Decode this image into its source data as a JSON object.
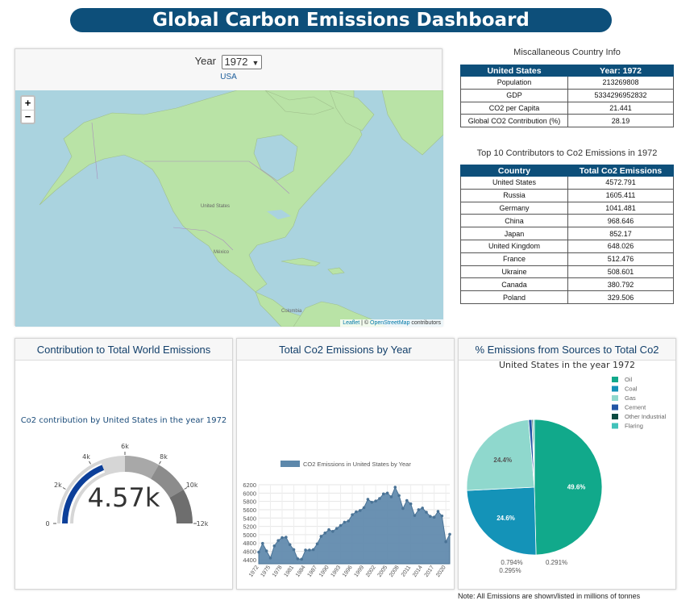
{
  "header": {
    "title": "Global Carbon Emissions Dashboard"
  },
  "map": {
    "year_label": "Year",
    "selected_year": "1972",
    "country": "USA",
    "zoom_in": "+",
    "zoom_out": "−",
    "labels": {
      "us": "United States",
      "mexico": "México",
      "colombia": "Colombia"
    },
    "attribution": {
      "leaflet": "Leaflet",
      "sep": " | © ",
      "osm": "OpenStreetMap",
      "suffix": " contributors"
    }
  },
  "info": {
    "title": "Miscallaneous Country Info",
    "col1": "United States",
    "col2": "Year: 1972",
    "rows": [
      {
        "label": "Population",
        "value": "213269808"
      },
      {
        "label": "GDP",
        "value": "5334296952832"
      },
      {
        "label": "CO2 per Capita",
        "value": "21.441"
      },
      {
        "label": "Global CO2 Contribution (%)",
        "value": "28.19"
      }
    ]
  },
  "top10": {
    "title": "Top 10 Contributors to Co2 Emissions in 1972",
    "col1": "Country",
    "col2": "Total Co2 Emissions",
    "rows": [
      {
        "country": "United States",
        "value": "4572.791"
      },
      {
        "country": "Russia",
        "value": "1605.411"
      },
      {
        "country": "Germany",
        "value": "1041.481"
      },
      {
        "country": "China",
        "value": "968.646"
      },
      {
        "country": "Japan",
        "value": "852.17"
      },
      {
        "country": "United Kingdom",
        "value": "648.026"
      },
      {
        "country": "France",
        "value": "512.476"
      },
      {
        "country": "Ukraine",
        "value": "508.601"
      },
      {
        "country": "Canada",
        "value": "380.792"
      },
      {
        "country": "Poland",
        "value": "329.506"
      }
    ]
  },
  "gauge_card": {
    "title": "Contribution to Total World Emissions",
    "caption": "Co2 contribution by United States in the year 1972",
    "value_text": "4.57k"
  },
  "line_card": {
    "title": "Total Co2 Emissions by Year"
  },
  "pie_card": {
    "title": "% Emissions from Sources to Total Co2",
    "subtitle": "United States in the year 1972"
  },
  "note": "Note: All Emissions are shown/listed in millions of tonnes",
  "colors": {
    "accent": "#0d4f7a",
    "gauge_fill": "#0c3f99",
    "area": "#5d88ab"
  },
  "chart_data": [
    {
      "type": "gauge",
      "value": 4572.791,
      "range": [
        0,
        12000
      ],
      "ticks": [
        {
          "value": 0,
          "label": "0"
        },
        {
          "value": 2000,
          "label": "2k"
        },
        {
          "value": 4000,
          "label": "4k"
        },
        {
          "value": 6000,
          "label": "6k"
        },
        {
          "value": 8000,
          "label": "8k"
        },
        {
          "value": 10000,
          "label": "10k"
        },
        {
          "value": 12000,
          "label": "12k"
        }
      ],
      "bands": [
        {
          "from": 0,
          "to": 6000,
          "color": "#d6d6d6"
        },
        {
          "from": 6000,
          "to": 8000,
          "color": "#a8a8a8"
        },
        {
          "from": 8000,
          "to": 10000,
          "color": "#8c8c8c"
        },
        {
          "from": 10000,
          "to": 12000,
          "color": "#6e6e6e"
        }
      ]
    },
    {
      "type": "area",
      "legend": "CO2 Emissions in United States by Year",
      "ylim": [
        4300,
        6200
      ],
      "yticks": [
        4400,
        4600,
        4800,
        5000,
        5200,
        5400,
        5600,
        5800,
        6000,
        6200
      ],
      "x_tick_labels": [
        "1972",
        "1975",
        "1978",
        "1981",
        "1984",
        "1987",
        "1990",
        "1993",
        "1996",
        "1999",
        "2002",
        "2005",
        "2008",
        "2011",
        "2014",
        "2017",
        "2020"
      ],
      "x": [
        1972,
        1973,
        1974,
        1975,
        1976,
        1977,
        1978,
        1979,
        1980,
        1981,
        1982,
        1983,
        1984,
        1985,
        1986,
        1987,
        1988,
        1989,
        1990,
        1991,
        1992,
        1993,
        1994,
        1995,
        1996,
        1997,
        1998,
        1999,
        2000,
        2001,
        2002,
        2003,
        2004,
        2005,
        2006,
        2007,
        2008,
        2009,
        2010,
        2011,
        2012,
        2013,
        2014,
        2015,
        2016,
        2017,
        2018,
        2019,
        2020,
        2021
      ],
      "values": [
        4580,
        4790,
        4610,
        4440,
        4730,
        4860,
        4930,
        4940,
        4760,
        4640,
        4420,
        4410,
        4630,
        4630,
        4640,
        4780,
        4960,
        5040,
        5120,
        5080,
        5150,
        5220,
        5300,
        5330,
        5480,
        5550,
        5580,
        5650,
        5850,
        5780,
        5810,
        5870,
        5980,
        6000,
        5910,
        6140,
        5940,
        5630,
        5820,
        5740,
        5460,
        5600,
        5640,
        5540,
        5440,
        5420,
        5560,
        5450,
        4830,
        5010
      ]
    },
    {
      "type": "pie",
      "labels": [
        "Oil",
        "Coal",
        "Gas",
        "Cement",
        "Other Industrial",
        "Flaring"
      ],
      "values": [
        49.6,
        24.6,
        24.4,
        0.794,
        0.295,
        0.291
      ],
      "colors": [
        "#11a98b",
        "#1493b8",
        "#8fd8cd",
        "#2255a5",
        "#0b4a40",
        "#41c2ba"
      ],
      "legend_position": "top-right"
    }
  ]
}
